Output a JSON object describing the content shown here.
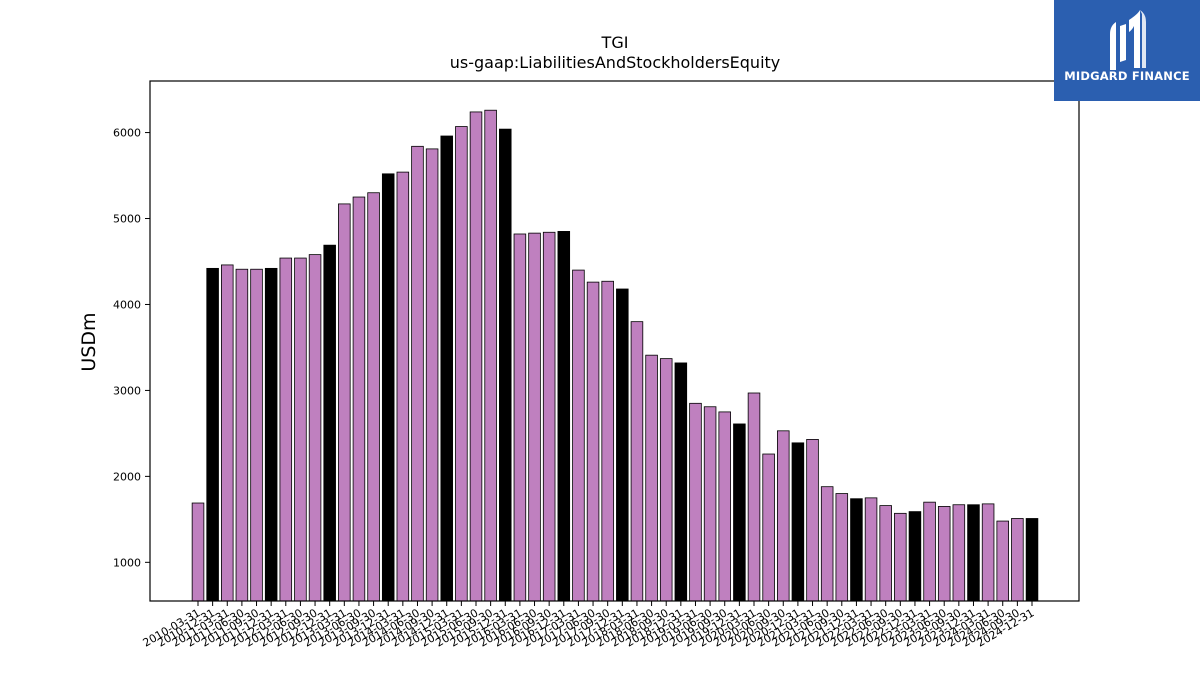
{
  "chart_data": {
    "type": "bar",
    "title": "TGI",
    "subtitle": "us-gaap:LiabilitiesAndStockholdersEquity",
    "xlabel": "",
    "ylabel": "USDm",
    "ylim": [
      550,
      6600
    ],
    "yticks": [
      1000,
      2000,
      3000,
      4000,
      5000,
      6000
    ],
    "grid": false,
    "colors": {
      "quarter": "#bf80bf",
      "year_end": "#000000",
      "edge": "#000000"
    },
    "categories": [
      "2010-03-31",
      "2010-12-31",
      "2011-03-31",
      "2011-06-30",
      "2011-09-30",
      "2011-12-31",
      "2012-03-31",
      "2012-06-30",
      "2012-09-30",
      "2012-12-31",
      "2013-03-31",
      "2013-06-30",
      "2013-09-30",
      "2013-12-31",
      "2014-03-31",
      "2014-06-30",
      "2014-09-30",
      "2014-12-31",
      "2015-03-31",
      "2015-06-30",
      "2015-09-30",
      "2015-12-31",
      "2016-03-31",
      "2016-06-30",
      "2016-09-30",
      "2016-12-31",
      "2017-03-31",
      "2017-06-30",
      "2017-09-30",
      "2017-12-31",
      "2018-03-31",
      "2018-06-30",
      "2018-09-30",
      "2018-12-31",
      "2019-03-31",
      "2019-06-30",
      "2019-09-30",
      "2019-12-31",
      "2020-03-31",
      "2020-06-30",
      "2020-09-30",
      "2020-12-31",
      "2021-03-31",
      "2021-06-30",
      "2021-09-30",
      "2021-12-31",
      "2022-03-31",
      "2022-06-30",
      "2022-09-30",
      "2022-12-31",
      "2023-03-31",
      "2023-06-30",
      "2023-09-30",
      "2023-12-31",
      "2024-03-31",
      "2024-06-30",
      "2024-09-30",
      "2024-12-31"
    ],
    "values": [
      1690,
      4420,
      4460,
      4410,
      4410,
      4420,
      4540,
      4540,
      4580,
      4690,
      5170,
      5250,
      5300,
      5520,
      5540,
      5840,
      5810,
      5960,
      6070,
      6240,
      6260,
      6040,
      4820,
      4830,
      4840,
      4850,
      4400,
      4260,
      4270,
      4180,
      3800,
      3410,
      3370,
      3320,
      2850,
      2810,
      2750,
      2610,
      2970,
      2260,
      2530,
      2390,
      2430,
      1880,
      1800,
      1740,
      1750,
      1660,
      1570,
      1590,
      1700,
      1650,
      1670,
      1670,
      1680,
      1480,
      1510,
      1510
    ],
    "year_end_flags": [
      0,
      1,
      0,
      0,
      0,
      1,
      0,
      0,
      0,
      1,
      0,
      0,
      0,
      1,
      0,
      0,
      0,
      1,
      0,
      0,
      0,
      1,
      0,
      0,
      0,
      1,
      0,
      0,
      0,
      1,
      0,
      0,
      0,
      1,
      0,
      0,
      0,
      1,
      0,
      0,
      0,
      1,
      0,
      0,
      0,
      1,
      0,
      0,
      0,
      1,
      0,
      0,
      0,
      1,
      0,
      0,
      0,
      1
    ]
  },
  "logo": {
    "text": "MIDGARD FINANCE",
    "icon": "midgard-logo-icon"
  }
}
